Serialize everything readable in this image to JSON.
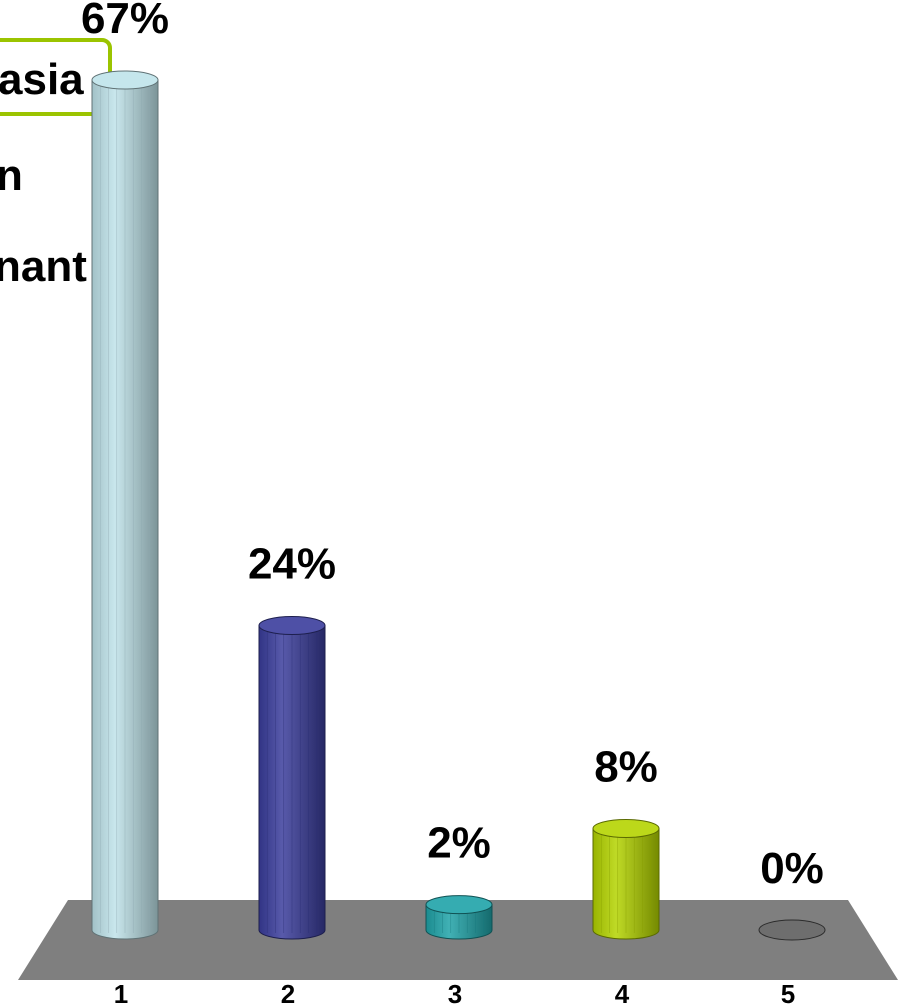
{
  "answer_options": [
    "asia",
    "n",
    "nant"
  ],
  "chart_data": {
    "type": "bar",
    "categories": [
      "1",
      "2",
      "3",
      "4",
      "5"
    ],
    "values": [
      67,
      24,
      2,
      8,
      0
    ],
    "value_labels": [
      "67%",
      "24%",
      "2%",
      "8%",
      "0%"
    ],
    "ylim": [
      0,
      67
    ],
    "grid": false,
    "legend": "none",
    "colors": [
      "#bfe3ea",
      "#3a3d9c",
      "#1fa3a8",
      "#b4d400",
      "#6e6e6e"
    ],
    "floor_color": "#7f7f7f",
    "highlight_color": "#9bc400"
  }
}
